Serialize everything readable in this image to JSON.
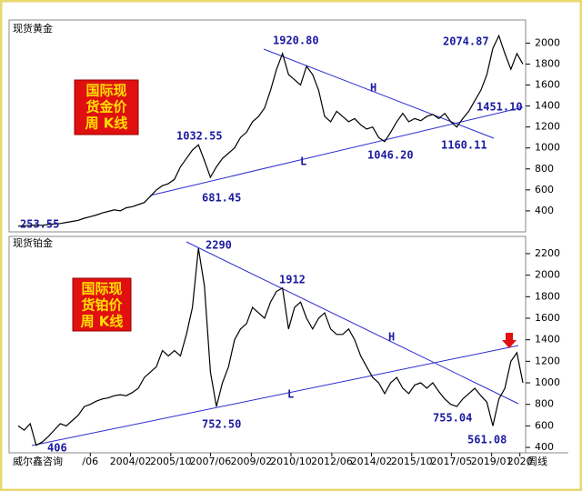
{
  "chart_data": [
    {
      "type": "line",
      "title": "现货黄金",
      "color": "#000000",
      "ylim": [
        200,
        2220
      ],
      "yticks": [
        400,
        600,
        800,
        1000,
        1200,
        1400,
        1600,
        1800,
        2000
      ],
      "xlim": [
        0,
        84
      ],
      "values": [
        255,
        258,
        262,
        265,
        262,
        270,
        275,
        280,
        290,
        300,
        310,
        330,
        345,
        360,
        380,
        395,
        410,
        400,
        430,
        440,
        460,
        480,
        540,
        600,
        640,
        660,
        700,
        820,
        900,
        980,
        1030,
        880,
        720,
        820,
        900,
        950,
        1000,
        1100,
        1150,
        1250,
        1300,
        1380,
        1550,
        1750,
        1900,
        1700,
        1650,
        1600,
        1780,
        1700,
        1550,
        1300,
        1250,
        1350,
        1300,
        1250,
        1280,
        1220,
        1180,
        1200,
        1100,
        1060,
        1150,
        1250,
        1330,
        1250,
        1280,
        1260,
        1300,
        1320,
        1280,
        1330,
        1250,
        1200,
        1280,
        1350,
        1450,
        1550,
        1700,
        1950,
        2070,
        1900,
        1750,
        1900,
        1800
      ],
      "annotations": [
        "1920.80",
        "2074.87",
        "1032.55",
        "681.45",
        "253.55",
        "1046.20",
        "1160.11",
        "1451.10",
        "H",
        "L"
      ],
      "box_text": [
        "国际现",
        "货金价",
        "周 K线"
      ]
    },
    {
      "type": "line",
      "title": "现货铂金",
      "color": "#000000",
      "ylim": [
        350,
        2360
      ],
      "yticks": [
        400,
        600,
        800,
        1000,
        1200,
        1400,
        1600,
        1800,
        2000,
        2200
      ],
      "xlim": [
        0,
        84
      ],
      "values": [
        600,
        560,
        620,
        420,
        450,
        500,
        560,
        620,
        600,
        650,
        700,
        780,
        800,
        830,
        850,
        860,
        880,
        890,
        880,
        910,
        950,
        1050,
        1100,
        1150,
        1300,
        1250,
        1300,
        1250,
        1450,
        1700,
        2250,
        1900,
        1100,
        780,
        1000,
        1150,
        1400,
        1500,
        1550,
        1700,
        1650,
        1600,
        1750,
        1850,
        1880,
        1500,
        1700,
        1750,
        1600,
        1500,
        1600,
        1650,
        1500,
        1450,
        1450,
        1500,
        1400,
        1250,
        1150,
        1050,
        1000,
        900,
        1000,
        1050,
        950,
        900,
        980,
        1000,
        950,
        1000,
        920,
        850,
        800,
        780,
        850,
        900,
        950,
        880,
        820,
        600,
        850,
        950,
        1200,
        1280,
        1000
      ],
      "annotations": [
        "2290",
        "1912",
        "752.50",
        "406",
        "755.04",
        "561.08",
        "H",
        "L"
      ],
      "box_text": [
        "国际现",
        "货铂价",
        "周 K线"
      ],
      "xticks": [
        {
          "value": 12,
          "label": "/06"
        },
        {
          "value": 18.7,
          "label": "2004/02"
        },
        {
          "value": 25.4,
          "label": "2005/10"
        },
        {
          "value": 32,
          "label": "2007/06"
        },
        {
          "value": 38.8,
          "label": "2009/02"
        },
        {
          "value": 45.4,
          "label": "2010/10"
        },
        {
          "value": 52.2,
          "label": "2012/06"
        },
        {
          "value": 58.8,
          "label": "2014/02"
        },
        {
          "value": 65.5,
          "label": "2015/10"
        },
        {
          "value": 72.1,
          "label": "2017/05"
        },
        {
          "value": 78.8,
          "label": "2019/01"
        },
        {
          "value": 83.5,
          "label": "2020"
        }
      ]
    }
  ],
  "footer": {
    "left": "威尔鑫咨询",
    "right": "周线"
  }
}
